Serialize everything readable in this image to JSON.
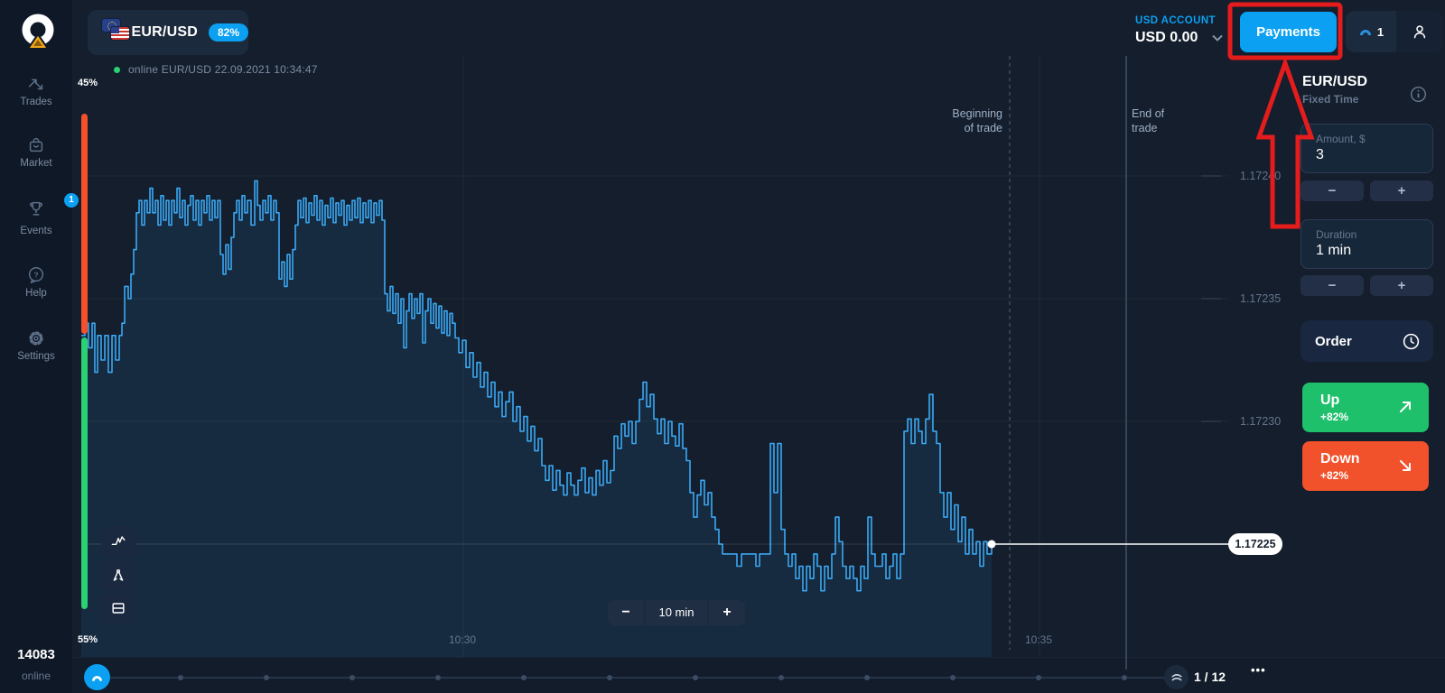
{
  "topbar": {
    "asset_pair": "EUR/USD",
    "asset_payout_badge": "82%",
    "status_text": "online EUR/USD  22.09.2021  10:34:47",
    "account_label": "USD ACCOUNT",
    "account_balance": "USD 0.00",
    "payments_label": "Payments",
    "notification_count": "1"
  },
  "sidebar": {
    "items": [
      {
        "label": "Trades"
      },
      {
        "label": "Market"
      },
      {
        "label": "Events",
        "badge": "1"
      },
      {
        "label": "Help"
      },
      {
        "label": "Settings"
      }
    ],
    "online_count": "14083",
    "online_label": "online"
  },
  "trade_panel": {
    "pair": "EUR/USD",
    "mode": "Fixed Time",
    "amount_label": "Amount, $",
    "amount_value": "3",
    "duration_label": "Duration",
    "duration_value": "1 min",
    "order_label": "Order",
    "up_label": "Up",
    "up_payout": "+82%",
    "down_label": "Down",
    "down_payout": "+82%",
    "minus": "−",
    "plus": "+"
  },
  "chart": {
    "sentiment_up": "45%",
    "sentiment_down": "55%",
    "begin_line1": "Beginning",
    "begin_line2": "of trade",
    "end_line1": "End of",
    "end_line2": "trade",
    "current_price": "1.17225",
    "interval_label": "10 min",
    "y_ticks": [
      "1.17240",
      "1.17235",
      "1.17230"
    ],
    "x_ticks": [
      "10:30",
      "10:35"
    ]
  },
  "bottombar": {
    "page": "1 / 12",
    "more": "•••"
  },
  "chart_data": {
    "type": "line",
    "symbol": "EUR/USD",
    "style": "tick step line with area fill",
    "x_ticks": [
      "10:30",
      "10:35"
    ],
    "x_range_time": [
      "10:26:40",
      "10:34:47"
    ],
    "y_ticks": [
      1.1724,
      1.17235,
      1.1723
    ],
    "ylim": [
      1.17222,
      1.17242
    ],
    "current_price": 1.17225,
    "annotations": [
      "Beginning of trade",
      "End of trade"
    ],
    "sentiment": {
      "up_pct": 45,
      "down_pct": 55
    },
    "line_color": "#3aa8f3",
    "points": [
      [
        0,
        1.172335
      ],
      [
        4,
        1.17234
      ],
      [
        8,
        1.17233
      ],
      [
        12,
        1.17234
      ],
      [
        15,
        1.17232
      ],
      [
        18,
        1.172335
      ],
      [
        22,
        1.172325
      ],
      [
        26,
        1.172335
      ],
      [
        30,
        1.17232
      ],
      [
        34,
        1.172335
      ],
      [
        38,
        1.172325
      ],
      [
        42,
        1.172335
      ],
      [
        45,
        1.17234
      ],
      [
        48,
        1.172355
      ],
      [
        52,
        1.17235
      ],
      [
        55,
        1.17236
      ],
      [
        58,
        1.17237
      ],
      [
        61,
        1.172385
      ],
      [
        64,
        1.17239
      ],
      [
        67,
        1.17238
      ],
      [
        70,
        1.17239
      ],
      [
        73,
        1.172385
      ],
      [
        76,
        1.172395
      ],
      [
        79,
        1.172385
      ],
      [
        82,
        1.17239
      ],
      [
        85,
        1.17238
      ],
      [
        88,
        1.172392
      ],
      [
        91,
        1.172382
      ],
      [
        94,
        1.17239
      ],
      [
        97,
        1.17238
      ],
      [
        100,
        1.17239
      ],
      [
        103,
        1.172385
      ],
      [
        106,
        1.172395
      ],
      [
        109,
        1.172383
      ],
      [
        112,
        1.17239
      ],
      [
        115,
        1.17238
      ],
      [
        118,
        1.172388
      ],
      [
        121,
        1.172392
      ],
      [
        124,
        1.172382
      ],
      [
        127,
        1.17239
      ],
      [
        130,
        1.17238
      ],
      [
        133,
        1.17239
      ],
      [
        136,
        1.172385
      ],
      [
        139,
        1.172392
      ],
      [
        142,
        1.172382
      ],
      [
        145,
        1.17239
      ],
      [
        148,
        1.172383
      ],
      [
        151,
        1.17239
      ],
      [
        154,
        1.172368
      ],
      [
        157,
        1.17236
      ],
      [
        160,
        1.172372
      ],
      [
        163,
        1.172362
      ],
      [
        166,
        1.172375
      ],
      [
        169,
        1.172385
      ],
      [
        172,
        1.17239
      ],
      [
        175,
        1.172382
      ],
      [
        178,
        1.172392
      ],
      [
        181,
        1.172385
      ],
      [
        184,
        1.17239
      ],
      [
        188,
        1.17238
      ],
      [
        192,
        1.172398
      ],
      [
        195,
        1.172388
      ],
      [
        198,
        1.172382
      ],
      [
        201,
        1.17239
      ],
      [
        204,
        1.172385
      ],
      [
        207,
        1.172392
      ],
      [
        210,
        1.172382
      ],
      [
        213,
        1.17239
      ],
      [
        216,
        1.172385
      ],
      [
        219,
        1.172358
      ],
      [
        222,
        1.172365
      ],
      [
        225,
        1.172355
      ],
      [
        228,
        1.172368
      ],
      [
        231,
        1.172358
      ],
      [
        234,
        1.17237
      ],
      [
        237,
        1.17238
      ],
      [
        240,
        1.17239
      ],
      [
        243,
        1.172383
      ],
      [
        246,
        1.172391
      ],
      [
        249,
        1.172381
      ],
      [
        252,
        1.172389
      ],
      [
        255,
        1.172384
      ],
      [
        258,
        1.172392
      ],
      [
        261,
        1.172382
      ],
      [
        264,
        1.17239
      ],
      [
        267,
        1.17238
      ],
      [
        270,
        1.172388
      ],
      [
        273,
        1.172383
      ],
      [
        276,
        1.172391
      ],
      [
        279,
        1.172381
      ],
      [
        282,
        1.172389
      ],
      [
        285,
        1.172384
      ],
      [
        288,
        1.17239
      ],
      [
        291,
        1.17238
      ],
      [
        294,
        1.172388
      ],
      [
        297,
        1.172382
      ],
      [
        300,
        1.17239
      ],
      [
        303,
        1.172383
      ],
      [
        306,
        1.172391
      ],
      [
        309,
        1.172381
      ],
      [
        312,
        1.172389
      ],
      [
        315,
        1.172383
      ],
      [
        318,
        1.17239
      ],
      [
        321,
        1.172381
      ],
      [
        324,
        1.172389
      ],
      [
        327,
        1.172384
      ],
      [
        330,
        1.17239
      ],
      [
        333,
        1.172382
      ],
      [
        336,
        1.172352
      ],
      [
        339,
        1.172345
      ],
      [
        342,
        1.172355
      ],
      [
        345,
        1.172344
      ],
      [
        348,
        1.172352
      ],
      [
        351,
        1.17234
      ],
      [
        354,
        1.17235
      ],
      [
        357,
        1.17233
      ],
      [
        360,
        1.172345
      ],
      [
        363,
        1.172352
      ],
      [
        366,
        1.172342
      ],
      [
        369,
        1.17235
      ],
      [
        372,
        1.172344
      ],
      [
        375,
        1.172352
      ],
      [
        378,
        1.172332
      ],
      [
        381,
        1.172345
      ],
      [
        384,
        1.17235
      ],
      [
        387,
        1.17234
      ],
      [
        390,
        1.172348
      ],
      [
        393,
        1.172338
      ],
      [
        396,
        1.172347
      ],
      [
        399,
        1.172336
      ],
      [
        402,
        1.172345
      ],
      [
        405,
        1.172335
      ],
      [
        408,
        1.172344
      ],
      [
        411,
        1.17234
      ],
      [
        414,
        1.172334
      ],
      [
        418,
        1.172328
      ],
      [
        422,
        1.172333
      ],
      [
        426,
        1.172322
      ],
      [
        430,
        1.172328
      ],
      [
        434,
        1.172318
      ],
      [
        438,
        1.172324
      ],
      [
        442,
        1.172314
      ],
      [
        446,
        1.17232
      ],
      [
        450,
        1.17231
      ],
      [
        454,
        1.172316
      ],
      [
        458,
        1.172306
      ],
      [
        462,
        1.172312
      ],
      [
        466,
        1.172302
      ],
      [
        470,
        1.172308
      ],
      [
        474,
        1.172312
      ],
      [
        478,
        1.1723
      ],
      [
        482,
        1.172306
      ],
      [
        486,
        1.172296
      ],
      [
        490,
        1.172302
      ],
      [
        494,
        1.172292
      ],
      [
        498,
        1.172298
      ],
      [
        502,
        1.172288
      ],
      [
        506,
        1.172293
      ],
      [
        510,
        1.172282
      ],
      [
        514,
        1.172276
      ],
      [
        518,
        1.172282
      ],
      [
        522,
        1.172272
      ],
      [
        526,
        1.17228
      ],
      [
        530,
        1.172274
      ],
      [
        534,
        1.17227
      ],
      [
        538,
        1.172279
      ],
      [
        542,
        1.172274
      ],
      [
        546,
        1.17227
      ],
      [
        550,
        1.172276
      ],
      [
        554,
        1.172281
      ],
      [
        558,
        1.172271
      ],
      [
        562,
        1.172277
      ],
      [
        566,
        1.17227
      ],
      [
        570,
        1.17228
      ],
      [
        574,
        1.172274
      ],
      [
        578,
        1.172284
      ],
      [
        582,
        1.172275
      ],
      [
        586,
        1.17228
      ],
      [
        590,
        1.172294
      ],
      [
        594,
        1.172289
      ],
      [
        598,
        1.172299
      ],
      [
        602,
        1.172294
      ],
      [
        606,
        1.1723
      ],
      [
        610,
        1.172291
      ],
      [
        614,
        1.1723
      ],
      [
        618,
        1.172309
      ],
      [
        622,
        1.172316
      ],
      [
        626,
        1.172306
      ],
      [
        630,
        1.172311
      ],
      [
        634,
        1.172301
      ],
      [
        638,
        1.172295
      ],
      [
        642,
        1.172301
      ],
      [
        646,
        1.172291
      ],
      [
        650,
        1.1723
      ],
      [
        654,
        1.172294
      ],
      [
        658,
        1.17229
      ],
      [
        662,
        1.172299
      ],
      [
        666,
        1.172289
      ],
      [
        670,
        1.172284
      ],
      [
        674,
        1.172271
      ],
      [
        678,
        1.172261
      ],
      [
        682,
        1.17227
      ],
      [
        686,
        1.172276
      ],
      [
        690,
        1.172266
      ],
      [
        694,
        1.172271
      ],
      [
        698,
        1.172261
      ],
      [
        702,
        1.172256
      ],
      [
        706,
        1.17225
      ],
      [
        710,
        1.172246
      ],
      [
        718,
        1.172246
      ],
      [
        726,
        1.172241
      ],
      [
        731,
        1.172246
      ],
      [
        739,
        1.172246
      ],
      [
        747,
        1.172241
      ],
      [
        751,
        1.172246
      ],
      [
        759,
        1.172246
      ],
      [
        763,
        1.172291
      ],
      [
        767,
        1.172271
      ],
      [
        771,
        1.172291
      ],
      [
        775,
        1.172256
      ],
      [
        779,
        1.172246
      ],
      [
        783,
        1.172241
      ],
      [
        787,
        1.172246
      ],
      [
        791,
        1.172236
      ],
      [
        795,
        1.172241
      ],
      [
        799,
        1.172231
      ],
      [
        803,
        1.172241
      ],
      [
        807,
        1.172236
      ],
      [
        811,
        1.172246
      ],
      [
        815,
        1.172241
      ],
      [
        819,
        1.172231
      ],
      [
        823,
        1.172241
      ],
      [
        827,
        1.172236
      ],
      [
        831,
        1.172246
      ],
      [
        835,
        1.172261
      ],
      [
        839,
        1.172251
      ],
      [
        843,
        1.172241
      ],
      [
        847,
        1.172236
      ],
      [
        851,
        1.172241
      ],
      [
        855,
        1.172236
      ],
      [
        859,
        1.172231
      ],
      [
        863,
        1.172241
      ],
      [
        867,
        1.172236
      ],
      [
        871,
        1.172261
      ],
      [
        875,
        1.172246
      ],
      [
        879,
        1.172241
      ],
      [
        883,
        1.172241
      ],
      [
        887,
        1.172246
      ],
      [
        891,
        1.172236
      ],
      [
        895,
        1.172241
      ],
      [
        899,
        1.172246
      ],
      [
        903,
        1.172236
      ],
      [
        907,
        1.172246
      ],
      [
        911,
        1.172296
      ],
      [
        915,
        1.172301
      ],
      [
        919,
        1.172291
      ],
      [
        923,
        1.172301
      ],
      [
        927,
        1.172296
      ],
      [
        931,
        1.172291
      ],
      [
        935,
        1.172301
      ],
      [
        939,
        1.172311
      ],
      [
        943,
        1.172296
      ],
      [
        947,
        1.172291
      ],
      [
        951,
        1.172271
      ],
      [
        955,
        1.172261
      ],
      [
        959,
        1.172271
      ],
      [
        963,
        1.172256
      ],
      [
        967,
        1.172266
      ],
      [
        971,
        1.172251
      ],
      [
        975,
        1.172261
      ],
      [
        979,
        1.172246
      ],
      [
        983,
        1.172256
      ],
      [
        987,
        1.172246
      ],
      [
        991,
        1.172251
      ],
      [
        995,
        1.172241
      ],
      [
        999,
        1.172251
      ],
      [
        1003,
        1.172246
      ],
      [
        1008,
        1.17225
      ]
    ]
  }
}
